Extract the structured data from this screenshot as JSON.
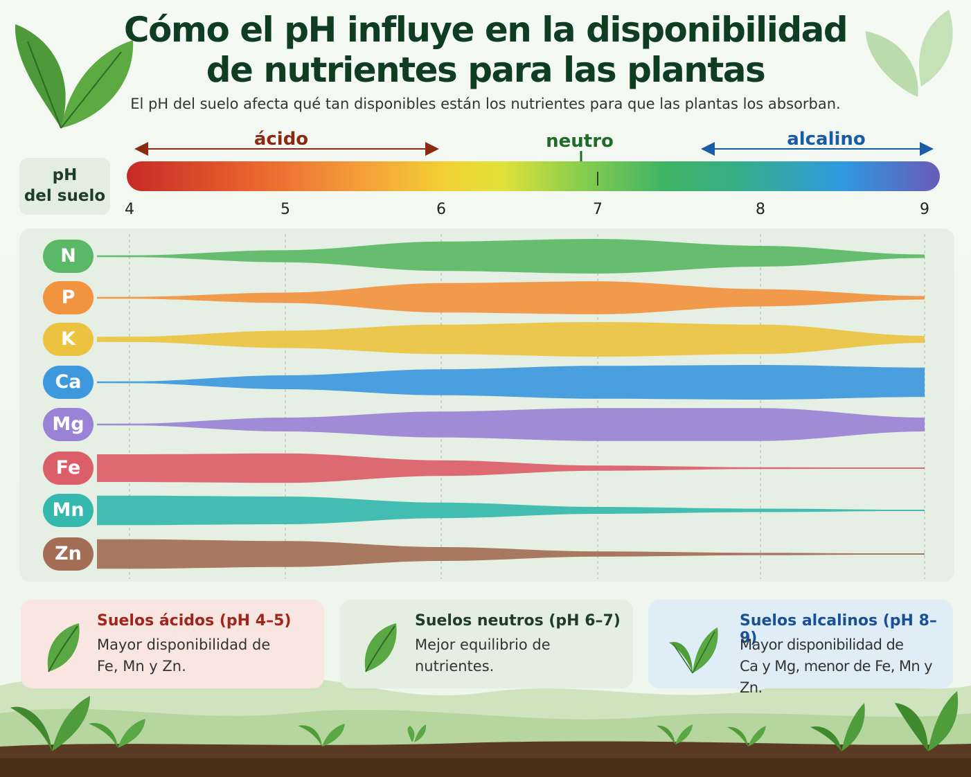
{
  "title_line1": "Cómo el pH influye en la disponibilidad",
  "title_line2": "de nutrientes para las plantas",
  "subtitle": "El pH del suelo afecta qué tan disponibles están los nutrientes para que las plantas los absorban.",
  "scale": {
    "acid_label": "ácido",
    "neutral_label": "neutro",
    "alkaline_label": "alcalino",
    "ph_label_line1": "pH",
    "ph_label_line2": "del suelo",
    "ticks": [
      "4",
      "5",
      "6",
      "7",
      "8",
      "9"
    ],
    "colors": {
      "acid": "#8b2a12",
      "neutral": "#1f6b2a",
      "alkaline": "#1a5ba6"
    }
  },
  "nutrients": [
    {
      "symbol": "N",
      "color": "#5bb866"
    },
    {
      "symbol": "P",
      "color": "#f2933f"
    },
    {
      "symbol": "K",
      "color": "#ecc340"
    },
    {
      "symbol": "Ca",
      "color": "#3d98dd"
    },
    {
      "symbol": "Mg",
      "color": "#9a82d6"
    },
    {
      "symbol": "Fe",
      "color": "#dc5e68"
    },
    {
      "symbol": "Mn",
      "color": "#35b8ad"
    },
    {
      "symbol": "Zn",
      "color": "#a36e55"
    }
  ],
  "cards": [
    {
      "title": "Suelos ácidos (pH 4–5)",
      "line1": "Mayor disponibilidad de",
      "line2": "Fe, Mn y Zn.",
      "title_color": "#a3241c",
      "bg": "#f9e6e1",
      "icon": "leaf-icon"
    },
    {
      "title": "Suelos neutros (pH 6–7)",
      "line1": "Mejor equilibrio de",
      "line2": "nutrientes.",
      "title_color": "#1d3d26",
      "bg": "#e5efe1",
      "icon": "leaf-icon"
    },
    {
      "title": "Suelos alcalinos (pH 8–9)",
      "line1": "Mayor disponibilidad de",
      "line2": "Ca y Mg, menor de Fe, Mn y Zn.",
      "title_color": "#1a5096",
      "bg": "#dfedf7",
      "icon": "sprout-icon"
    }
  ],
  "chart_data": {
    "type": "area",
    "xlabel": "pH del suelo",
    "xlim": [
      4,
      9
    ],
    "x": [
      4,
      5,
      6,
      7,
      8,
      9
    ],
    "series": [
      {
        "name": "N",
        "values": [
          0.05,
          0.35,
          0.85,
          1.0,
          0.6,
          0.1
        ]
      },
      {
        "name": "P",
        "values": [
          0.05,
          0.3,
          0.85,
          0.95,
          0.5,
          0.1
        ]
      },
      {
        "name": "K",
        "values": [
          0.15,
          0.5,
          0.85,
          1.0,
          0.85,
          0.2
        ]
      },
      {
        "name": "Ca",
        "values": [
          0.05,
          0.4,
          0.75,
          0.95,
          1.0,
          0.85
        ]
      },
      {
        "name": "Mg",
        "values": [
          0.05,
          0.4,
          0.75,
          0.95,
          0.95,
          0.4
        ]
      },
      {
        "name": "Fe",
        "values": [
          0.8,
          0.85,
          0.45,
          0.15,
          0.05,
          0.02
        ]
      },
      {
        "name": "Mn",
        "values": [
          0.85,
          0.8,
          0.45,
          0.2,
          0.1,
          0.03
        ]
      },
      {
        "name": "Zn",
        "values": [
          0.85,
          0.75,
          0.4,
          0.15,
          0.07,
          0.02
        ]
      }
    ]
  }
}
